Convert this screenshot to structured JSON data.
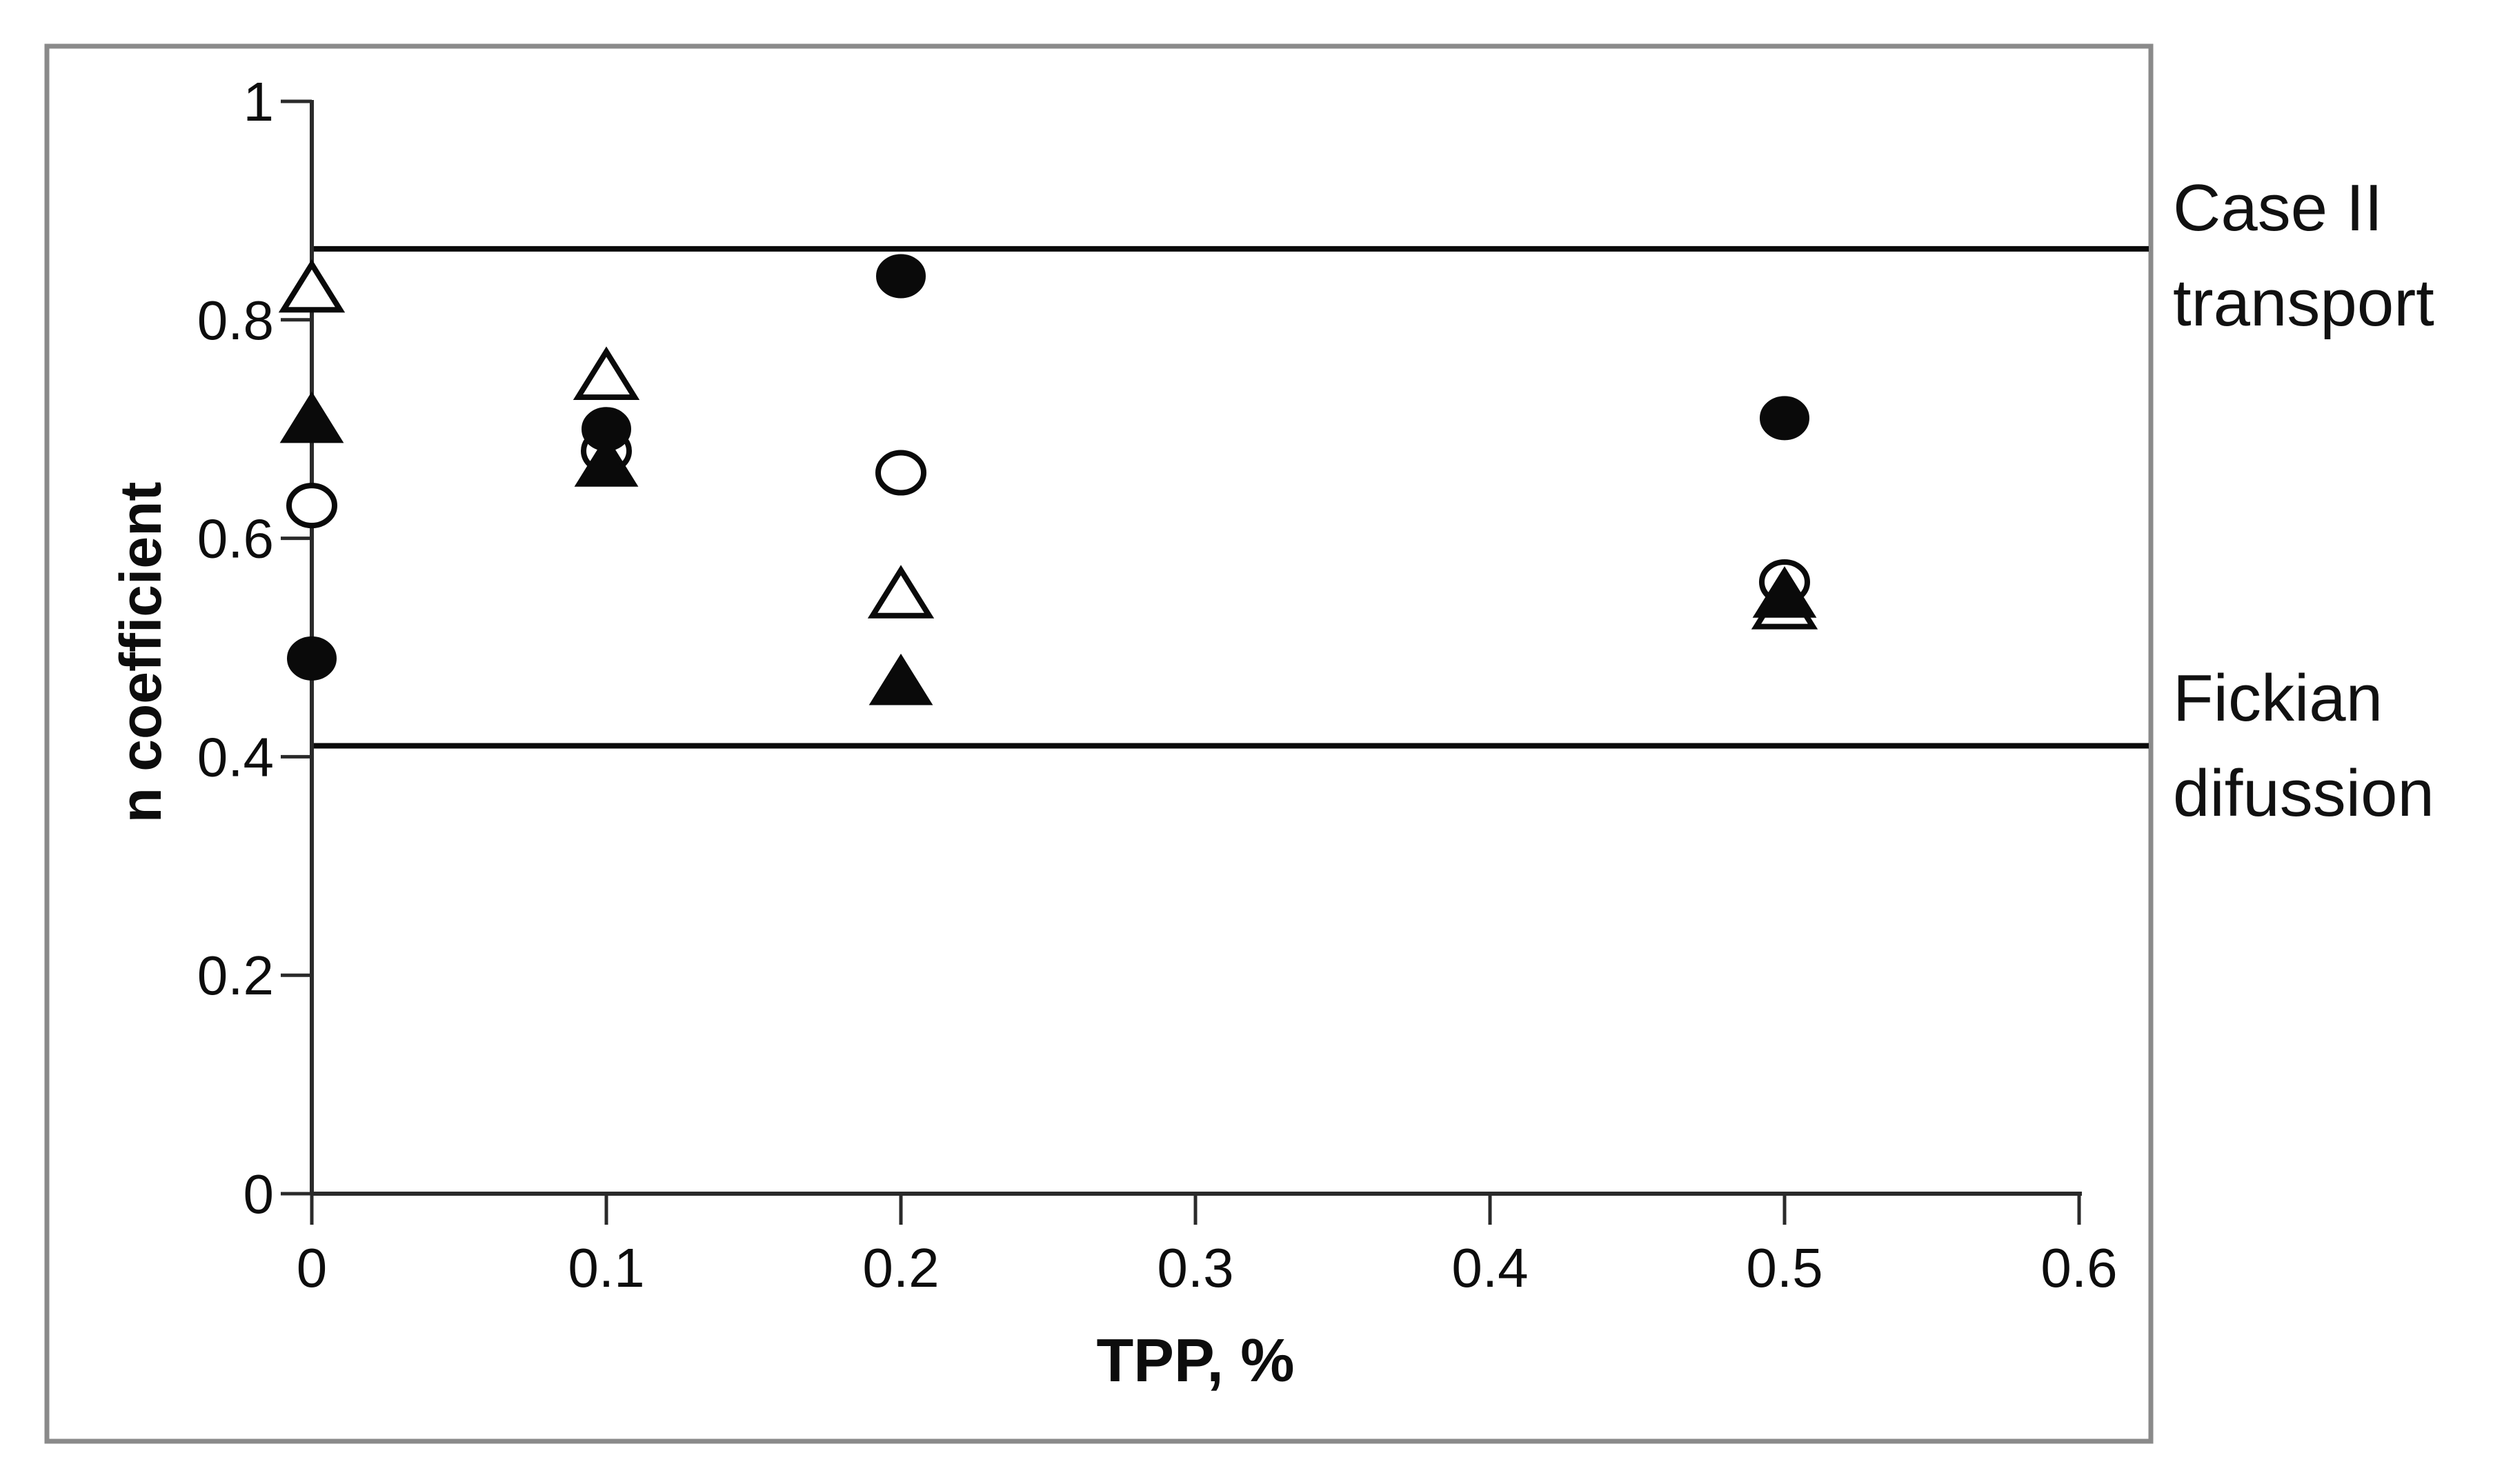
{
  "figure": {
    "y_axis": {
      "title": "n coefficient",
      "ticks": [
        {
          "label": "1",
          "value": 1.0
        },
        {
          "label": "0.8",
          "value": 0.8
        },
        {
          "label": "0.6",
          "value": 0.6
        },
        {
          "label": "0.4",
          "value": 0.4
        },
        {
          "label": "0.2",
          "value": 0.2
        },
        {
          "label": "0",
          "value": 0.0
        }
      ]
    },
    "x_axis": {
      "title": "TPP, %",
      "ticks": [
        {
          "label": "0",
          "value": 0.0
        },
        {
          "label": "0.1",
          "value": 0.1
        },
        {
          "label": "0.2",
          "value": 0.2
        },
        {
          "label": "0.3",
          "value": 0.3
        },
        {
          "label": "0.4",
          "value": 0.4
        },
        {
          "label": "0.5",
          "value": 0.5
        },
        {
          "label": "0.6",
          "value": 0.6
        }
      ]
    },
    "annotations": {
      "case2": {
        "line1": "Case II",
        "line2": "transport"
      },
      "fickian": {
        "line1": "Fickian",
        "line2": "difussion"
      }
    },
    "colors": {
      "marker": "#0a0a0a",
      "axis": "#2a2a2a",
      "reference_line": "#0a0a0a",
      "border": "#8a8a8a",
      "open_marker_fill": "#ffffff"
    }
  },
  "chart_data": {
    "type": "scatter",
    "title": "",
    "xlabel": "TPP, %",
    "ylabel": "n coefficient",
    "xlim": [
      0,
      0.62
    ],
    "ylim": [
      0,
      1
    ],
    "grid": false,
    "legend": "none",
    "x": [
      0,
      0.1,
      0.2,
      0.5
    ],
    "series": [
      {
        "name": "filled-circle",
        "marker": "circle",
        "fill": "filled",
        "values": [
          0.49,
          0.7,
          0.84,
          0.71
        ]
      },
      {
        "name": "open-circle",
        "marker": "circle",
        "fill": "open",
        "values": [
          0.63,
          0.68,
          0.66,
          0.56
        ]
      },
      {
        "name": "filled-triangle",
        "marker": "triangle",
        "fill": "filled",
        "values": [
          0.71,
          0.67,
          0.47,
          0.55
        ]
      },
      {
        "name": "open-triangle",
        "marker": "triangle",
        "fill": "open",
        "values": [
          0.83,
          0.75,
          0.55,
          0.54
        ]
      }
    ],
    "reference_lines": [
      {
        "label": "Case II transport",
        "y": 0.865
      },
      {
        "label": "Fickian difussion",
        "y": 0.41
      }
    ]
  }
}
